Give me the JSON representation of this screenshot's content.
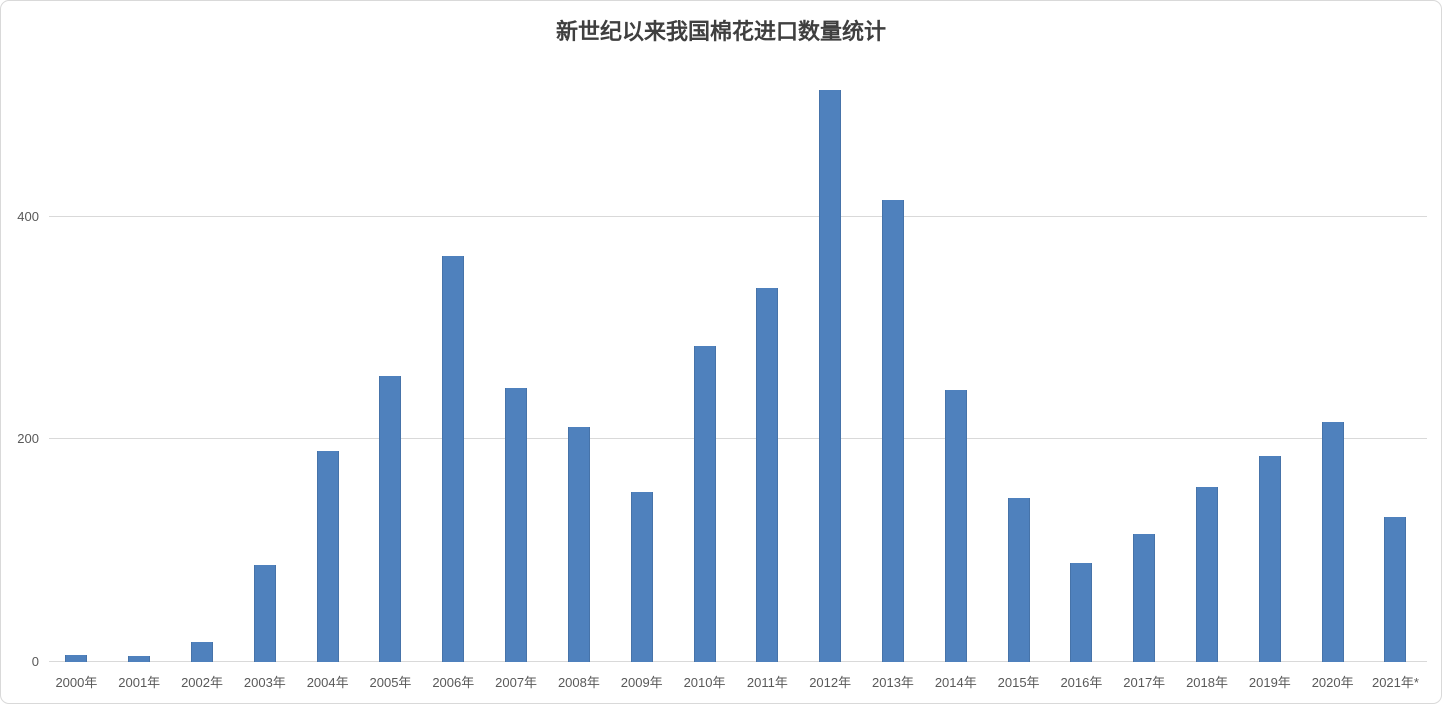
{
  "chart_data": {
    "type": "bar",
    "title": "新世纪以来我国棉花进口数量统计",
    "categories": [
      "2000年",
      "2001年",
      "2002年",
      "2003年",
      "2004年",
      "2005年",
      "2006年",
      "2007年",
      "2008年",
      "2009年",
      "2010年",
      "2011年",
      "2012年",
      "2013年",
      "2014年",
      "2015年",
      "2016年",
      "2017年",
      "2018年",
      "2019年",
      "2020年",
      "2021年*"
    ],
    "values": [
      6,
      5,
      18,
      87,
      190,
      257,
      365,
      246,
      211,
      153,
      284,
      336,
      514,
      415,
      244,
      147,
      89,
      115,
      157,
      185,
      216,
      130
    ],
    "xlabel": "",
    "ylabel": "",
    "y_ticks": [
      0,
      200,
      400
    ],
    "ylim": [
      0,
      540
    ],
    "grid": true,
    "legend_position": "none",
    "bar_color": "#4f81bd",
    "gridline_color": "#d9d9d9",
    "axis_text_color": "#595959",
    "title_color": "#3f3f3f",
    "background_color": "#ffffff"
  }
}
